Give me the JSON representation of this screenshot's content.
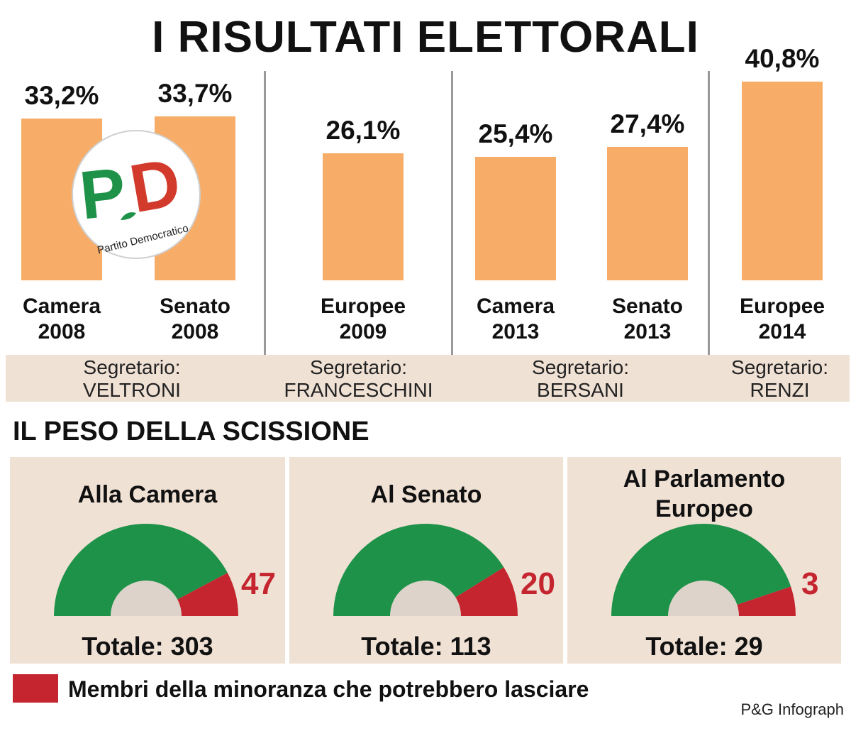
{
  "title": "I RISULTATI ELETTORALI",
  "chart_data": [
    {
      "type": "bar",
      "title": "I RISULTATI ELETTORALI",
      "categories": [
        "Camera 2008",
        "Senato 2008",
        "Europee 2009",
        "Camera 2013",
        "Senato 2013",
        "Europee 2014"
      ],
      "category_lines": [
        [
          "Camera",
          "2008"
        ],
        [
          "Senato",
          "2008"
        ],
        [
          "Europee",
          "2009"
        ],
        [
          "Camera",
          "2013"
        ],
        [
          "Senato",
          "2013"
        ],
        [
          "Europee",
          "2014"
        ]
      ],
      "values": [
        33.2,
        33.7,
        26.1,
        25.4,
        27.4,
        40.8
      ],
      "value_labels": [
        "33,2%",
        "33,7%",
        "26,1%",
        "25,4%",
        "27,4%",
        "40,8%"
      ],
      "unit": "%",
      "bar_color": "#f7ad68",
      "secretaries": [
        {
          "label": "Segretario:",
          "name": "VELTRONI"
        },
        {
          "label": "Segretario:",
          "name": "FRANCESCHINI"
        },
        {
          "label": "Segretario:",
          "name": "BERSANI"
        },
        {
          "label": "Segretario:",
          "name": "RENZI"
        }
      ]
    },
    {
      "type": "pie",
      "title": "IL PESO DELLA SCISSIONE",
      "style": "semicircle gauge",
      "panels": [
        {
          "title_lines": [
            "Alla Camera"
          ],
          "minority": 47,
          "total": 303,
          "total_label": "Totale: 303"
        },
        {
          "title_lines": [
            "Al Senato"
          ],
          "minority": 20,
          "total": 113,
          "total_label": "Totale: 113"
        },
        {
          "title_lines": [
            "Al Parlamento",
            "Europeo"
          ],
          "minority": 3,
          "total": 29,
          "total_label": "Totale: 29"
        }
      ],
      "colors": {
        "rest": "#1f9249",
        "minority": "#c4252f",
        "inner": "#ddd3ca"
      },
      "legend": "Membri della minoranza che potrebbero lasciare"
    }
  ],
  "section2_title": "IL PESO DELLA SCISSIONE",
  "logo": {
    "text_main": "PD",
    "text_caption": "Partito Democratico"
  },
  "credit": "P&G Infograph"
}
